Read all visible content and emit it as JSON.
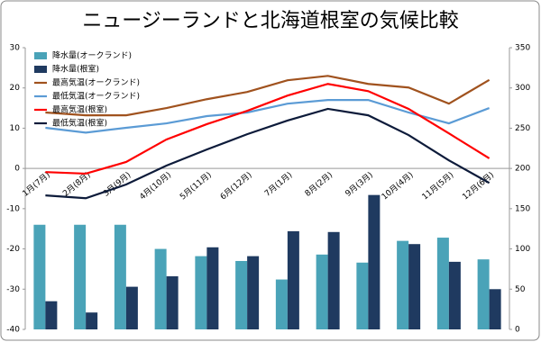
{
  "chart_data": {
    "type": "combo",
    "title": "ニュージーランドと北海道根室の気候比較",
    "categories": [
      "1月(7月)",
      "2月(8月)",
      "3月(9月)",
      "4月(10月)",
      "5月(11月)",
      "6月(12月)",
      "7月(1月)",
      "8月(2月)",
      "9月(3月)",
      "10月(4月)",
      "11月(5月)",
      "12月(6月)"
    ],
    "ylim": [
      -40,
      30
    ],
    "yticks": [
      -40,
      -30,
      -20,
      -10,
      0,
      10,
      20,
      30
    ],
    "y2lim": [
      0,
      350
    ],
    "y2ticks": [
      0,
      50,
      100,
      150,
      200,
      250,
      300,
      350
    ],
    "grid": false,
    "legend": "top-left",
    "series": [
      {
        "name": "降水量(オークランド)",
        "type": "bar",
        "axis": "y2",
        "color": "#4aa3b8",
        "values": [
          130,
          130,
          130,
          100,
          91,
          85,
          62,
          93,
          83,
          110,
          114,
          87
        ]
      },
      {
        "name": "降水量(根室)",
        "type": "bar",
        "axis": "y2",
        "color": "#1f3a60",
        "values": [
          35,
          21,
          53,
          66,
          102,
          91,
          122,
          121,
          167,
          106,
          84,
          50
        ]
      },
      {
        "name": "最高気温(オークランド)",
        "type": "line",
        "color": "#a0521e",
        "values": [
          13.9,
          13.2,
          13.2,
          15,
          17.2,
          19,
          21.9,
          23,
          21,
          20.1,
          16.1,
          22
        ]
      },
      {
        "name": "最低気温(オークランド)",
        "type": "line",
        "color": "#5b9bd5",
        "values": [
          10.1,
          8.9,
          10.1,
          11.2,
          13,
          13.9,
          16.1,
          17,
          17,
          13.9,
          11.2,
          15
        ]
      },
      {
        "name": "最高気温(根室)",
        "type": "line",
        "color": "#ff0000",
        "values": [
          -0.9,
          -1.3,
          1.6,
          7.2,
          11,
          14.3,
          18.1,
          21,
          19.2,
          14.8,
          8.7,
          2.5
        ]
      },
      {
        "name": "最低気温(根室)",
        "type": "line",
        "color": "#0d1b3a",
        "values": [
          -6.7,
          -7.4,
          -4,
          0.7,
          4.7,
          8.5,
          11.9,
          14.8,
          13.2,
          8.3,
          2,
          -3.6
        ]
      }
    ]
  }
}
